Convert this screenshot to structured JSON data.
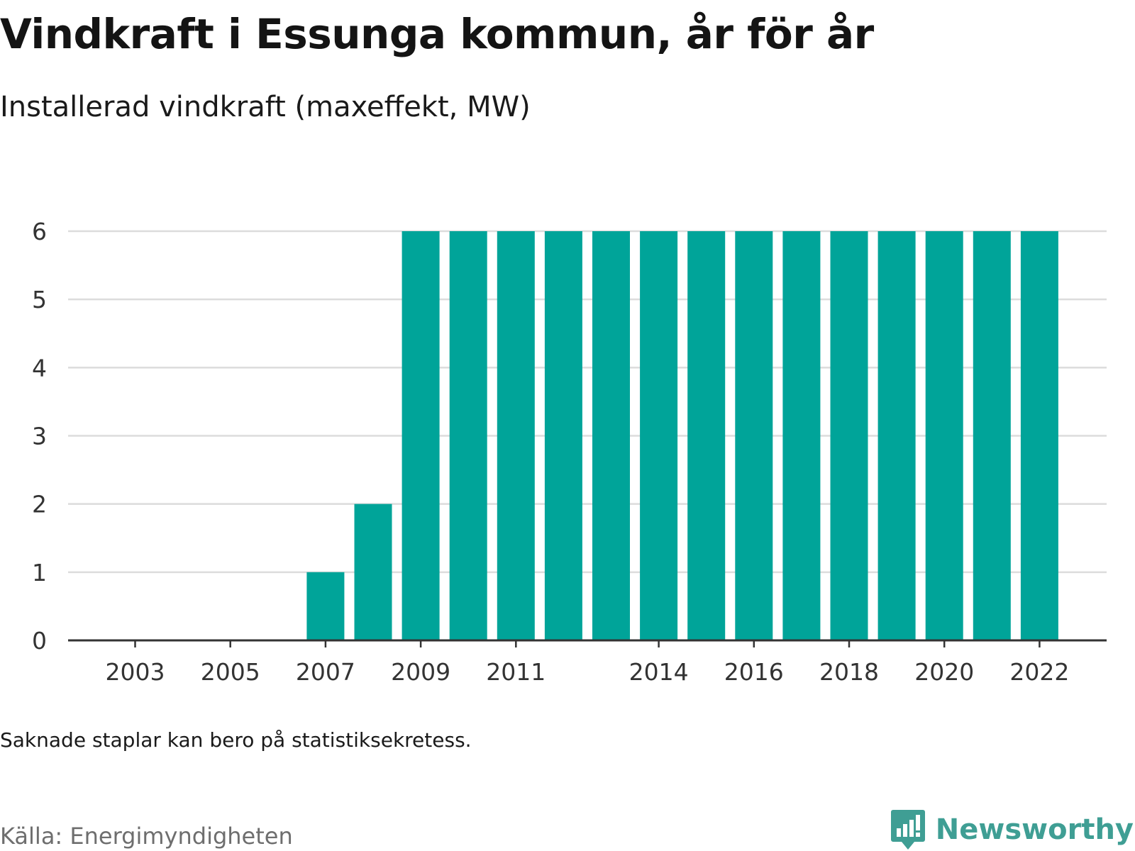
{
  "header": {
    "title": "Vindkraft i Essunga kommun, år för år",
    "subtitle": "Installerad vindkraft (maxeffekt, MW)"
  },
  "footer": {
    "note": "Saknade staplar kan bero på statistiksekretess.",
    "source": "Källa: Energimyndigheten",
    "brand": "Newsworthy",
    "brand_icon": "bar-chart-speech-icon"
  },
  "colors": {
    "bar": "#00a499",
    "grid": "#dcdcdc",
    "axis": "#333333",
    "brand": "#3f9e94"
  },
  "chart_data": {
    "type": "bar",
    "categories": [
      "2002",
      "2003",
      "2004",
      "2005",
      "2006",
      "2007",
      "2008",
      "2009",
      "2010",
      "2011",
      "2012",
      "2013",
      "2014",
      "2015",
      "2016",
      "2017",
      "2018",
      "2019",
      "2020",
      "2021",
      "2022"
    ],
    "values": [
      0,
      0,
      0,
      0,
      0,
      1,
      2,
      6,
      6,
      6,
      6,
      6,
      6,
      6,
      6,
      6,
      6,
      6,
      6,
      6,
      6
    ],
    "x_tick_labels": [
      "2003",
      "2005",
      "2007",
      "2009",
      "2011",
      "2014",
      "2016",
      "2018",
      "2020",
      "2022"
    ],
    "y_ticks": [
      0,
      1,
      2,
      3,
      4,
      5,
      6
    ],
    "ylim": [
      0,
      6
    ],
    "grid": true,
    "xlabel": "",
    "ylabel": ""
  }
}
